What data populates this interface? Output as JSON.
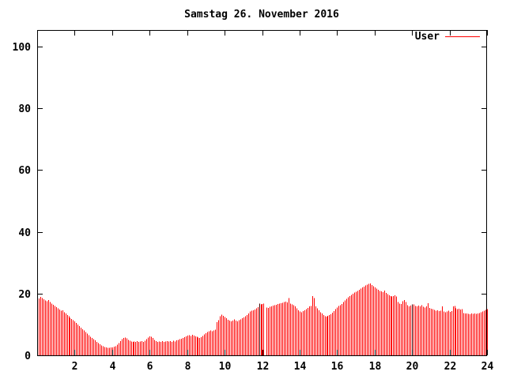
{
  "title": "Samstag 26. November 2016",
  "legend": {
    "label": "User"
  },
  "colors": {
    "bar": "#ff0000",
    "dark_bar": "#440000",
    "legend_line": "#ff0000",
    "axis": "#000000",
    "background": "#ffffff"
  },
  "chart_data": {
    "type": "bar",
    "style": "impulses",
    "title": "Samstag 26. November 2016",
    "xlabel": "",
    "ylabel": "",
    "xlim": [
      0,
      24
    ],
    "ylim": [
      0,
      105
    ],
    "x_ticks": [
      2,
      4,
      6,
      8,
      10,
      12,
      14,
      16,
      18,
      20,
      22,
      24
    ],
    "y_ticks": [
      0,
      20,
      40,
      60,
      80,
      100
    ],
    "grid": false,
    "legend_entries": [
      "User"
    ],
    "legend_position": "top-right-inside",
    "x_start_hours": 0.083333,
    "x_step_hours": 0.083333,
    "series": [
      {
        "name": "User",
        "values": [
          18.4,
          18.9,
          18.6,
          18.2,
          17.8,
          17.5,
          17.9,
          17.2,
          16.8,
          16.4,
          16.0,
          15.6,
          15.2,
          14.8,
          14.4,
          14.6,
          13.9,
          13.5,
          13.0,
          12.6,
          12.2,
          11.8,
          11.4,
          11.0,
          10.5,
          10.0,
          9.4,
          8.9,
          8.4,
          8.0,
          7.5,
          7.0,
          6.5,
          6.0,
          5.6,
          5.2,
          4.8,
          4.4,
          4.0,
          3.6,
          3.2,
          2.9,
          2.7,
          2.5,
          2.4,
          2.4,
          2.5,
          2.6,
          2.8,
          3.0,
          3.4,
          4.0,
          4.6,
          5.2,
          5.6,
          5.8,
          5.5,
          5.0,
          4.7,
          4.5,
          4.4,
          4.5,
          4.3,
          4.6,
          4.4,
          4.5,
          4.6,
          4.4,
          4.7,
          5.2,
          5.8,
          6.1,
          6.0,
          5.6,
          5.0,
          4.6,
          4.4,
          4.5,
          4.3,
          4.6,
          4.4,
          4.5,
          4.6,
          4.5,
          4.6,
          4.4,
          4.7,
          4.5,
          4.8,
          5.0,
          5.2,
          5.4,
          5.6,
          5.9,
          6.2,
          6.4,
          6.5,
          6.3,
          6.6,
          6.4,
          6.2,
          6.0,
          5.8,
          5.6,
          5.9,
          6.3,
          6.8,
          7.2,
          7.5,
          7.8,
          8.0,
          7.8,
          8.1,
          8.3,
          10.8,
          11.4,
          12.6,
          13.2,
          12.8,
          12.4,
          12.0,
          11.5,
          11.2,
          11.0,
          11.3,
          11.6,
          11.2,
          11.0,
          11.4,
          11.7,
          12.0,
          12.3,
          12.6,
          13.0,
          13.6,
          14.2,
          14.4,
          14.6,
          14.8,
          15.2,
          15.6,
          16.8,
          16.5,
          16.6,
          16.7,
          0,
          15.5,
          15.4,
          15.7,
          15.9,
          16.1,
          16.3,
          16.4,
          16.6,
          16.8,
          16.9,
          17.0,
          17.2,
          17.4,
          17.1,
          18.5,
          16.8,
          16.5,
          16.2,
          15.8,
          15.2,
          14.6,
          14.2,
          14.0,
          14.3,
          14.6,
          15.0,
          15.4,
          15.8,
          16.0,
          19.2,
          18.6,
          15.8,
          15.2,
          14.6,
          14.0,
          13.5,
          13.0,
          12.7,
          12.5,
          12.8,
          13.0,
          13.3,
          13.8,
          14.3,
          14.9,
          15.5,
          16.0,
          16.3,
          16.6,
          17.2,
          17.8,
          18.3,
          18.8,
          19.2,
          19.6,
          20.0,
          20.3,
          20.6,
          20.8,
          21.2,
          21.6,
          22.0,
          22.3,
          22.6,
          22.9,
          23.1,
          23.3,
          22.8,
          22.4,
          22.0,
          21.6,
          21.2,
          20.9,
          20.7,
          20.5,
          21.0,
          20.2,
          19.8,
          19.5,
          19.2,
          19.0,
          19.2,
          19.4,
          19.0,
          17.2,
          16.8,
          16.6,
          17.5,
          17.9,
          17.2,
          16.2,
          15.9,
          16.1,
          16.5,
          16.5,
          16.0,
          15.8,
          16.1,
          15.9,
          16.2,
          15.7,
          15.5,
          15.8,
          16.9,
          15.4,
          15.1,
          15.0,
          14.7,
          14.4,
          14.6,
          14.3,
          14.5,
          15.9,
          14.2,
          14.0,
          14.2,
          14.4,
          14.1,
          14.3,
          15.8,
          16.0,
          15.2,
          14.9,
          15.1,
          14.8,
          15.0,
          13.7,
          13.5,
          13.6,
          13.4,
          13.3,
          13.5,
          13.4,
          13.6,
          13.4,
          13.5,
          13.7,
          13.9,
          14.2,
          14.4,
          14.7,
          15.0
        ]
      }
    ],
    "special_bars": {
      "dark_indexes": [
        141,
        239
      ],
      "gap_indexes": [
        145
      ]
    }
  }
}
